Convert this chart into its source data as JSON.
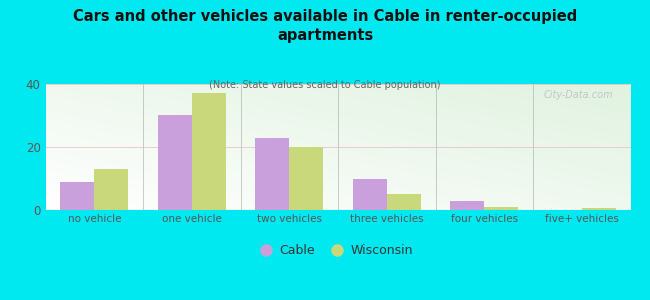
{
  "categories": [
    "no vehicle",
    "one vehicle",
    "two vehicles",
    "three vehicles",
    "four vehicles",
    "five+ vehicles"
  ],
  "cable_values": [
    9,
    30,
    23,
    10,
    3,
    0
  ],
  "wisconsin_values": [
    13,
    37,
    20,
    5,
    1,
    0.5
  ],
  "cable_color": "#c9a0dc",
  "wisconsin_color": "#c8d87a",
  "title": "Cars and other vehicles available in Cable in renter-occupied\napartments",
  "subtitle": "(Note: State values scaled to Cable population)",
  "ylim": [
    0,
    40
  ],
  "yticks": [
    0,
    20,
    40
  ],
  "background_color": "#00e8f0",
  "watermark": "City-Data.com",
  "legend_cable": "Cable",
  "legend_wisconsin": "Wisconsin",
  "bar_width": 0.35,
  "title_color": "#111111",
  "subtitle_color": "#666666",
  "tick_color": "#555555"
}
